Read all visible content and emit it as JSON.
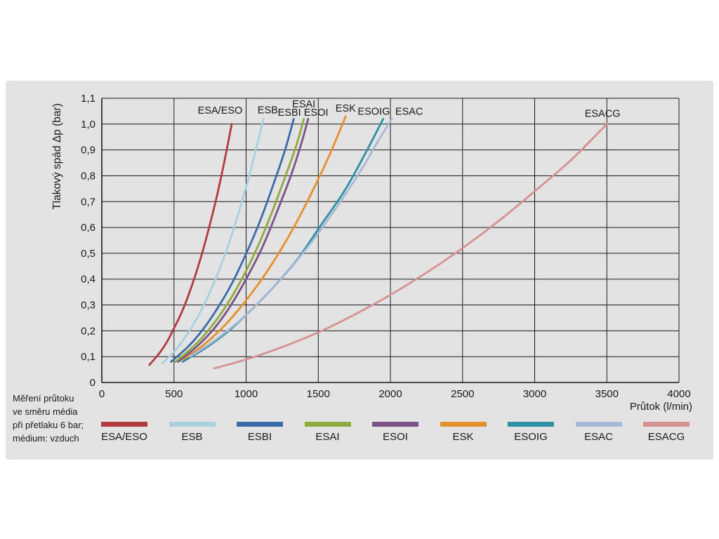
{
  "page": {
    "background": "#ffffff",
    "panel_background": "#e3e3e3"
  },
  "note": {
    "text": "Měření průtoku\nve směru média\npři přetlaku 6 bar;\nmédium: vzduch"
  },
  "chart_data": {
    "type": "line",
    "title": "",
    "xlabel": "Průtok (l/min)",
    "ylabel": "Tlakový spád Δp (bar)",
    "xlim": [
      0,
      4000
    ],
    "ylim": [
      0,
      1.1
    ],
    "grid": true,
    "grid_color": "#1a1a1a",
    "legend_position": "bottom",
    "xticks": {
      "values": [
        0,
        500,
        1000,
        1500,
        2000,
        2500,
        3000,
        3500,
        4000
      ],
      "labels": [
        "0",
        "500",
        "1000",
        "1500",
        "2000",
        "2500",
        "3000",
        "3500",
        "4000"
      ]
    },
    "yticks": {
      "values": [
        0,
        0.1,
        0.2,
        0.3,
        0.4,
        0.5,
        0.6,
        0.7,
        0.8,
        0.9,
        1.0,
        1.1
      ],
      "labels": [
        "0",
        "0,1",
        "0,2",
        "0,3",
        "0,4",
        "0,5",
        "0,6",
        "0,7",
        "0,8",
        "0,9",
        "1,0",
        "1,1"
      ]
    },
    "series": [
      {
        "name": "ESA/ESO",
        "color": "#b23b3f",
        "label_at": [
          820,
          1.04
        ],
        "points": [
          [
            330,
            0.068
          ],
          [
            400,
            0.114
          ],
          [
            450,
            0.156
          ],
          [
            500,
            0.21
          ],
          [
            550,
            0.267
          ],
          [
            600,
            0.337
          ],
          [
            650,
            0.418
          ],
          [
            700,
            0.51
          ],
          [
            750,
            0.614
          ],
          [
            800,
            0.727
          ],
          [
            850,
            0.857
          ],
          [
            900,
            1.0
          ]
        ]
      },
      {
        "name": "ESB",
        "color": "#a7d1dd",
        "label_at": [
          1150,
          1.042
        ],
        "points": [
          [
            420,
            0.075
          ],
          [
            500,
            0.118
          ],
          [
            600,
            0.193
          ],
          [
            700,
            0.292
          ],
          [
            800,
            0.416
          ],
          [
            900,
            0.571
          ],
          [
            1000,
            0.756
          ],
          [
            1060,
            0.883
          ],
          [
            1120,
            1.02
          ]
        ]
      },
      {
        "name": "ESBI",
        "color": "#3a6ca9",
        "label_at": [
          1300,
          1.032
        ],
        "points": [
          [
            480,
            0.08
          ],
          [
            600,
            0.14
          ],
          [
            700,
            0.205
          ],
          [
            800,
            0.286
          ],
          [
            900,
            0.382
          ],
          [
            1000,
            0.498
          ],
          [
            1100,
            0.63
          ],
          [
            1200,
            0.784
          ],
          [
            1270,
            0.9
          ],
          [
            1330,
            1.02
          ]
        ]
      },
      {
        "name": "ESAI",
        "color": "#8dab3f",
        "label_at": [
          1400,
          1.065
        ],
        "points": [
          [
            510,
            0.08
          ],
          [
            640,
            0.142
          ],
          [
            750,
            0.21
          ],
          [
            860,
            0.295
          ],
          [
            970,
            0.4
          ],
          [
            1080,
            0.525
          ],
          [
            1180,
            0.66
          ],
          [
            1280,
            0.81
          ],
          [
            1350,
            0.92
          ],
          [
            1400,
            1.02
          ]
        ]
      },
      {
        "name": "ESOI",
        "color": "#7d5189",
        "label_at": [
          1485,
          1.032
        ],
        "points": [
          [
            530,
            0.08
          ],
          [
            660,
            0.14
          ],
          [
            780,
            0.21
          ],
          [
            890,
            0.295
          ],
          [
            1000,
            0.4
          ],
          [
            1110,
            0.52
          ],
          [
            1210,
            0.655
          ],
          [
            1310,
            0.8
          ],
          [
            1380,
            0.92
          ],
          [
            1430,
            1.02
          ]
        ]
      },
      {
        "name": "ESK",
        "color": "#e68f2f",
        "label_at": [
          1690,
          1.048
        ],
        "points": [
          [
            570,
            0.09
          ],
          [
            700,
            0.143
          ],
          [
            820,
            0.203
          ],
          [
            950,
            0.283
          ],
          [
            1080,
            0.377
          ],
          [
            1200,
            0.477
          ],
          [
            1330,
            0.6
          ],
          [
            1450,
            0.73
          ],
          [
            1570,
            0.87
          ],
          [
            1690,
            1.03
          ]
        ]
      },
      {
        "name": "ESOIG",
        "color": "#2e90a3",
        "label_at": [
          1885,
          1.036
        ],
        "points": [
          [
            560,
            0.08
          ],
          [
            720,
            0.134
          ],
          [
            880,
            0.2
          ],
          [
            1040,
            0.283
          ],
          [
            1200,
            0.375
          ],
          [
            1360,
            0.48
          ],
          [
            1520,
            0.61
          ],
          [
            1680,
            0.74
          ],
          [
            1820,
            0.88
          ],
          [
            1950,
            1.02
          ]
        ]
      },
      {
        "name": "ESAC",
        "color": "#aab8d8",
        "label_at": [
          2130,
          1.036
        ],
        "points": [
          [
            610,
            0.1
          ],
          [
            780,
            0.162
          ],
          [
            950,
            0.237
          ],
          [
            1120,
            0.327
          ],
          [
            1290,
            0.43
          ],
          [
            1460,
            0.548
          ],
          [
            1630,
            0.68
          ],
          [
            1800,
            0.825
          ],
          [
            1910,
            0.93
          ],
          [
            2010,
            1.02
          ]
        ]
      },
      {
        "name": "ESACG",
        "color": "#d69192",
        "label_at": [
          3470,
          1.028
        ],
        "points": [
          [
            780,
            0.055
          ],
          [
            1000,
            0.089
          ],
          [
            1250,
            0.137
          ],
          [
            1500,
            0.194
          ],
          [
            1750,
            0.262
          ],
          [
            2000,
            0.339
          ],
          [
            2250,
            0.425
          ],
          [
            2500,
            0.52
          ],
          [
            2750,
            0.625
          ],
          [
            3000,
            0.74
          ],
          [
            3250,
            0.86
          ],
          [
            3500,
            1.0
          ]
        ]
      }
    ]
  }
}
